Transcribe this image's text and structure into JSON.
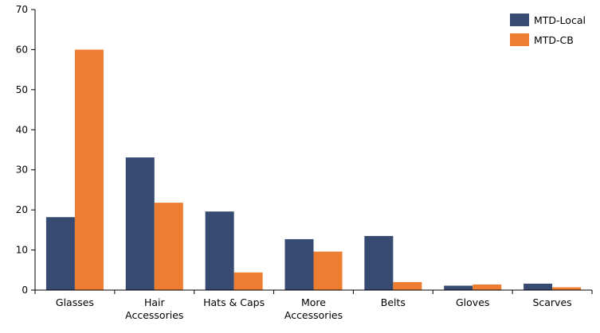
{
  "chart_data": {
    "type": "bar",
    "title": "",
    "xlabel": "",
    "ylabel": "",
    "ylim": [
      0,
      70
    ],
    "yticks": [
      0,
      10,
      20,
      30,
      40,
      50,
      60,
      70
    ],
    "grid": false,
    "legend_position": "top-right",
    "categories": [
      [
        "Glasses"
      ],
      [
        "Hair",
        "Accessories"
      ],
      [
        "Hats & Caps"
      ],
      [
        "More",
        "Accessories"
      ],
      [
        "Belts"
      ],
      [
        "Gloves"
      ],
      [
        "Scarves"
      ]
    ],
    "series": [
      {
        "name": "MTD-Local",
        "color": "#364a72",
        "values": [
          18.2,
          33.1,
          19.6,
          12.7,
          13.5,
          1.1,
          1.6
        ]
      },
      {
        "name": "MTD-CB",
        "color": "#ed7d31",
        "values": [
          60.0,
          21.8,
          4.4,
          9.6,
          2.0,
          1.4,
          0.7
        ]
      }
    ]
  }
}
